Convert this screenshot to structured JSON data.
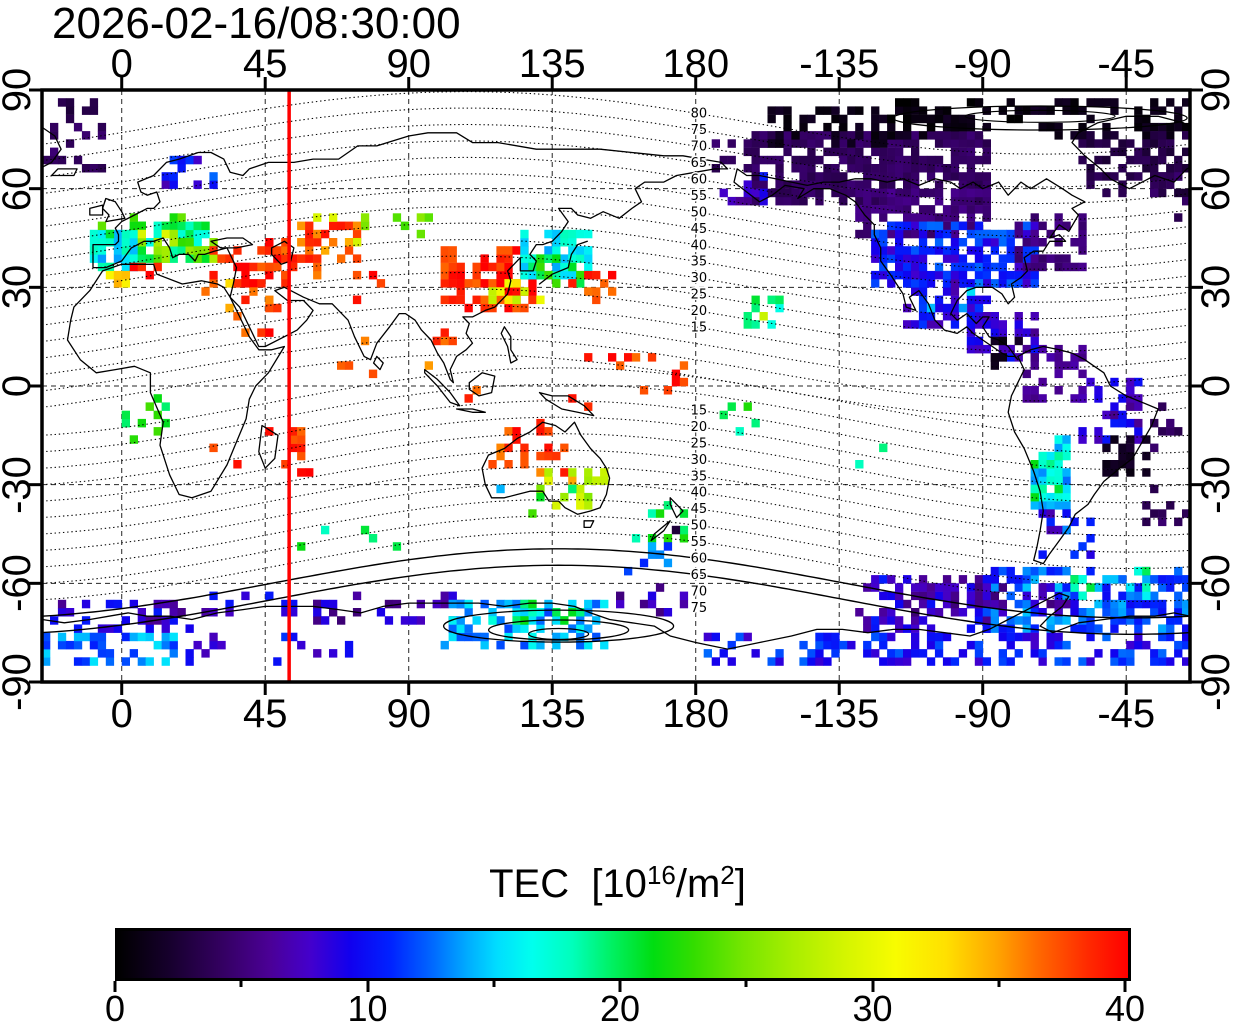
{
  "title": "2026-02-16/08:30:00",
  "axes": {
    "lon_ticks": [
      "0",
      "45",
      "90",
      "135",
      "180",
      "-135",
      "-90",
      "-45"
    ],
    "lon_values": [
      0,
      45,
      90,
      135,
      180,
      225,
      270,
      315
    ],
    "lat_ticks": [
      "90",
      "60",
      "30",
      "0",
      "-30",
      "-60",
      "-90"
    ],
    "lat_values": [
      90,
      60,
      30,
      0,
      -30,
      -60,
      -90
    ]
  },
  "map": {
    "lon_range_deg": [
      -25,
      335
    ],
    "lat_range_deg": [
      -90,
      90
    ],
    "red_line_lon": 52.5,
    "red_line_color": "#ff0000"
  },
  "contour_labels_north": [
    80,
    75,
    70,
    65,
    60,
    55,
    50,
    45,
    40,
    35,
    30,
    25,
    20,
    15
  ],
  "contour_labels_south": [
    15,
    20,
    25,
    30,
    35,
    40,
    45,
    50,
    55,
    60,
    65,
    70,
    75
  ],
  "colorbar": {
    "title_pre": "TEC  [10",
    "title_sup1": "16",
    "title_mid": "/m",
    "title_sup2": "2",
    "title_post": "]",
    "min": 0,
    "max": 40,
    "tick_labels": [
      "0",
      "10",
      "20",
      "30",
      "40"
    ],
    "tick_values": [
      0,
      10,
      20,
      30,
      40
    ],
    "minor_tick_values": [
      5,
      15,
      25,
      35
    ],
    "gradient_stops": [
      [
        0,
        "#000000"
      ],
      [
        0.05,
        "#16002c"
      ],
      [
        0.1,
        "#32005e"
      ],
      [
        0.15,
        "#4b0096"
      ],
      [
        0.19,
        "#4400cc"
      ],
      [
        0.23,
        "#1100ee"
      ],
      [
        0.27,
        "#0022ff"
      ],
      [
        0.31,
        "#0066ff"
      ],
      [
        0.345,
        "#00aaff"
      ],
      [
        0.375,
        "#00ddff"
      ],
      [
        0.41,
        "#00ffee"
      ],
      [
        0.45,
        "#00ffbb"
      ],
      [
        0.49,
        "#00f060"
      ],
      [
        0.53,
        "#00dd11"
      ],
      [
        0.57,
        "#33dd00"
      ],
      [
        0.62,
        "#77e600"
      ],
      [
        0.67,
        "#aaee00"
      ],
      [
        0.72,
        "#d4f500"
      ],
      [
        0.77,
        "#f8fc00"
      ],
      [
        0.82,
        "#ffe000"
      ],
      [
        0.87,
        "#ffa500"
      ],
      [
        0.91,
        "#ff6a00"
      ],
      [
        0.96,
        "#ff2a00"
      ],
      [
        1,
        "#ff0000"
      ]
    ]
  },
  "chart_data": {
    "type": "heatmap",
    "title": "2026-02-16/08:30:00",
    "value_label": "TEC [10^16/m^2]",
    "value_range": [
      0,
      40
    ],
    "projection": "equirectangular",
    "lon_axis_ticks": [
      0,
      45,
      90,
      135,
      180,
      -135,
      -90,
      -45
    ],
    "lat_axis_ticks": [
      90,
      60,
      30,
      0,
      -30,
      -60,
      -90
    ],
    "red_meridian_lon": 52.5,
    "magnetic_contour_interval_deg": 5,
    "cell_size_deg": 2.5,
    "clusters_format": [
      "lon_min",
      "lon_max",
      "lat_min",
      "lat_max",
      "tec_value",
      "fill_density"
    ],
    "clusters": [
      [
        -12,
        3,
        35,
        47,
        16,
        0.75
      ],
      [
        2,
        26,
        36,
        48,
        19,
        0.6
      ],
      [
        -8,
        20,
        45,
        52,
        23,
        0.25
      ],
      [
        8,
        30,
        37,
        44,
        25,
        0.45
      ],
      [
        -4,
        16,
        41,
        47,
        28,
        0.25
      ],
      [
        -9,
        1,
        29,
        35,
        33,
        0.45
      ],
      [
        1,
        13,
        29,
        36,
        38,
        0.35
      ],
      [
        10,
        32,
        58,
        68,
        9,
        0.22
      ],
      [
        18,
        30,
        61,
        68,
        14,
        0.18
      ],
      [
        26,
        52,
        29,
        41,
        39,
        0.5
      ],
      [
        34,
        50,
        15,
        30,
        38,
        0.3
      ],
      [
        24,
        35,
        21,
        32,
        35,
        0.25
      ],
      [
        44,
        62,
        31,
        43,
        38,
        0.35
      ],
      [
        55,
        76,
        35,
        50,
        37,
        0.3
      ],
      [
        58,
        74,
        41,
        51,
        28,
        0.22
      ],
      [
        74,
        96,
        44,
        53,
        24,
        0.18
      ],
      [
        68,
        82,
        25,
        35,
        38,
        0.2
      ],
      [
        95,
        106,
        4,
        17,
        37,
        0.12
      ],
      [
        100,
        128,
        21,
        42,
        39,
        0.55
      ],
      [
        124,
        146,
        32,
        46,
        16,
        0.65
      ],
      [
        121,
        143,
        29,
        38,
        21,
        0.35
      ],
      [
        111,
        131,
        25,
        34,
        30,
        0.3
      ],
      [
        138,
        153,
        23,
        34,
        38,
        0.35
      ],
      [
        98,
        113,
        -9,
        3,
        37,
        0.1
      ],
      [
        136,
        152,
        -11,
        0,
        38,
        0.15
      ],
      [
        151,
        179,
        -6,
        9,
        38,
        0.22
      ],
      [
        187,
        200,
        -16,
        -5,
        20,
        0.15
      ],
      [
        193,
        206,
        17,
        28,
        19,
        0.45
      ],
      [
        196,
        204,
        20,
        26,
        28,
        0.25
      ],
      [
        44,
        60,
        -29,
        -13,
        39,
        0.45
      ],
      [
        24,
        38,
        -28,
        -18,
        37,
        0.15
      ],
      [
        0,
        13,
        -18,
        -4,
        21,
        0.18
      ],
      [
        54,
        96,
        -51,
        -41,
        20,
        0.13
      ],
      [
        114,
        136,
        -25,
        -11,
        38,
        0.3
      ],
      [
        121,
        141,
        -31,
        -19,
        37,
        0.18
      ],
      [
        130,
        151,
        -39,
        -27,
        27,
        0.28
      ],
      [
        127,
        149,
        -41,
        -31,
        21,
        0.2
      ],
      [
        113,
        121,
        -37,
        -29,
        14,
        0.15
      ],
      [
        159,
        176,
        -49,
        -37,
        20,
        0.2
      ],
      [
        163,
        173,
        -49,
        -41,
        2,
        0.12
      ],
      [
        227,
        245,
        -30,
        -15,
        18,
        0.1
      ],
      [
        196,
        272,
        54,
        76,
        4,
        0.75
      ],
      [
        228,
        272,
        44,
        59,
        5,
        0.7
      ],
      [
        234,
        286,
        29,
        49,
        10,
        0.8
      ],
      [
        244,
        271,
        17,
        33,
        9,
        0.6
      ],
      [
        250,
        268,
        19,
        31,
        14,
        0.18
      ],
      [
        279,
        301,
        34,
        51,
        5,
        0.45
      ],
      [
        264,
        286,
        7,
        21,
        8,
        0.45
      ],
      [
        271,
        283,
        3,
        13,
        1,
        0.25
      ],
      [
        199,
        261,
        71,
        85,
        1,
        0.45
      ],
      [
        240,
        281,
        76,
        86,
        0.5,
        0.5
      ],
      [
        281,
        336,
        73,
        87,
        1,
        0.5
      ],
      [
        299,
        336,
        57,
        77,
        3,
        0.55
      ],
      [
        321,
        336,
        49,
        63,
        4,
        0.3
      ],
      [
        -25,
        -6,
        65,
        79,
        4,
        0.35
      ],
      [
        -23,
        -5,
        80,
        86,
        3,
        0.3
      ],
      [
        184,
        201,
        63,
        75,
        4,
        0.35
      ],
      [
        186,
        201,
        55,
        64,
        8,
        0.3
      ],
      [
        281,
        301,
        -6,
        11,
        6,
        0.45
      ],
      [
        283,
        297,
        -41,
        -17,
        15,
        0.55
      ],
      [
        285,
        295,
        -37,
        -21,
        19,
        0.45
      ],
      [
        299,
        319,
        -19,
        1,
        8,
        0.45
      ],
      [
        307,
        321,
        -29,
        -15,
        1.5,
        0.5
      ],
      [
        316,
        331,
        -21,
        -7,
        4,
        0.25
      ],
      [
        287,
        303,
        -53,
        -39,
        9,
        0.35
      ],
      [
        295,
        307,
        -47,
        -35,
        13,
        0.2
      ],
      [
        320,
        336,
        -46,
        -30,
        4,
        0.18
      ],
      [
        -25,
        16,
        -85,
        -76,
        13,
        0.55
      ],
      [
        -25,
        21,
        -77,
        -67,
        8,
        0.45
      ],
      [
        21,
        61,
        -71,
        -63,
        8,
        0.25
      ],
      [
        59,
        106,
        -73,
        -63,
        7,
        0.35
      ],
      [
        99,
        151,
        -81,
        -65,
        14,
        0.5
      ],
      [
        114,
        146,
        -77,
        -67,
        19,
        0.25
      ],
      [
        149,
        176,
        -71,
        -61,
        7,
        0.35
      ],
      [
        157,
        173,
        -59,
        -49,
        13,
        0.25
      ],
      [
        229,
        271,
        -77,
        -59,
        8,
        0.55
      ],
      [
        269,
        336,
        -76,
        -57,
        12,
        0.6
      ],
      [
        293,
        321,
        -65,
        -55,
        18,
        0.25
      ],
      [
        239,
        301,
        -71,
        -61,
        7,
        0.35
      ],
      [
        181,
        336,
        -87,
        -76,
        10,
        0.45
      ],
      [
        19,
        71,
        -85,
        -77,
        9,
        0.2
      ],
      [
        61,
        79,
        1,
        15,
        37,
        0.08
      ],
      [
        133,
        147,
        3,
        12,
        38,
        0.1
      ]
    ]
  }
}
